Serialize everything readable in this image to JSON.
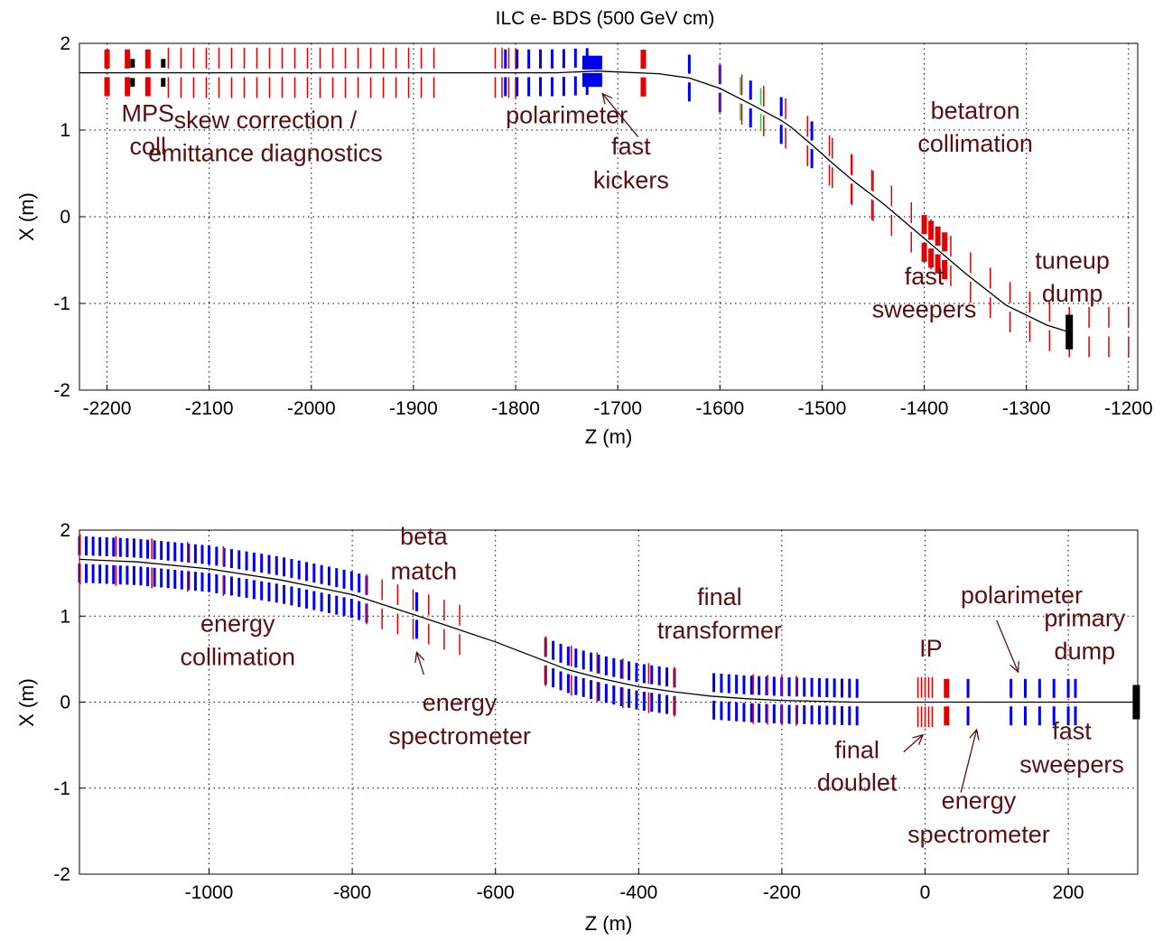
{
  "chart_data": [
    {
      "type": "line",
      "title": "ILC e- BDS (500 GeV cm)",
      "xlabel": "Z (m)",
      "ylabel": "X (m)",
      "xlim": [
        -2227,
        -1191
      ],
      "ylim": [
        -2,
        2
      ],
      "grid": true,
      "xticks": [
        -2200,
        -2100,
        -2000,
        -1900,
        -1800,
        -1700,
        -1600,
        -1500,
        -1400,
        -1300,
        -1200
      ],
      "yticks": [
        2,
        1,
        0,
        -1,
        -2
      ],
      "series": [
        {
          "style": "beamline-trajectory",
          "color": "#000000",
          "x": [
            -2227,
            -1760,
            -1720,
            -1700,
            -1660,
            -1630,
            -1600,
            -1570,
            -1540,
            -1530,
            -1510,
            -1490,
            -1470,
            -1440,
            -1400,
            -1360,
            -1320,
            -1280,
            -1258
          ],
          "y": [
            1.66,
            1.66,
            1.68,
            1.67,
            1.65,
            1.6,
            1.48,
            1.3,
            1.11,
            1.03,
            0.83,
            0.62,
            0.42,
            0.15,
            -0.25,
            -0.65,
            -1.02,
            -1.25,
            -1.33
          ]
        }
      ],
      "elements": [
        {
          "z": -2200,
          "type": "bend",
          "count": 1
        },
        {
          "z": -2180,
          "type": "bend",
          "count": 1
        },
        {
          "z": -2160,
          "type": "bend",
          "count": 1
        },
        {
          "z": -2175,
          "type": "collimator",
          "count": 1
        },
        {
          "z": -2145,
          "type": "collimator",
          "count": 1
        },
        {
          "range": [
            -2140,
            -1880
          ],
          "type": "thin-magnet",
          "count": 22
        },
        {
          "range": [
            -1820,
            -1800
          ],
          "type": "thin-magnet",
          "count": 4
        },
        {
          "range": [
            -1810,
            -1730
          ],
          "type": "quadrupole",
          "count": 8
        },
        {
          "z": -1725,
          "type": "kicker-block",
          "count": 1
        },
        {
          "z": -1675,
          "type": "bend",
          "count": 1
        },
        {
          "range": [
            -1630,
            -1510
          ],
          "type": "quadrupole",
          "count": 5
        },
        {
          "range": [
            -1600,
            -1560
          ],
          "type": "sextupole",
          "count": 3
        },
        {
          "range": [
            -1600,
            -1450
          ],
          "type": "thin-magnet",
          "count": 8
        },
        {
          "range": [
            -1400,
            -1380
          ],
          "type": "sweeper",
          "count": 4
        },
        {
          "range": [
            -1490,
            -1200
          ],
          "type": "thin-magnet",
          "count": 16
        },
        {
          "z": -1258,
          "type": "dump",
          "count": 1
        }
      ],
      "annotations": [
        {
          "text": "MPS",
          "x": -2160,
          "y": 1.1
        },
        {
          "text": "coll",
          "x": -2160,
          "y": 0.72
        },
        {
          "text": "skew correction /",
          "x": -2045,
          "y": 1.02
        },
        {
          "text": "emittance diagnostics",
          "x": -2045,
          "y": 0.64
        },
        {
          "text": "polarimeter",
          "x": -1750,
          "y": 1.08
        },
        {
          "text": "fast",
          "x": -1687,
          "y": 0.72
        },
        {
          "text": "kickers",
          "x": -1687,
          "y": 0.33
        },
        {
          "text": "betatron",
          "x": -1350,
          "y": 1.13
        },
        {
          "text": "collimation",
          "x": -1350,
          "y": 0.75
        },
        {
          "text": "fast",
          "x": -1400,
          "y": -0.78
        },
        {
          "text": "sweepers",
          "x": -1400,
          "y": -1.16
        },
        {
          "text": "tuneup",
          "x": -1255,
          "y": -0.6
        },
        {
          "text": "dump",
          "x": -1255,
          "y": -0.98
        }
      ]
    },
    {
      "type": "line",
      "title": "",
      "xlabel": "Z (m)",
      "ylabel": "X (m)",
      "xlim": [
        -1181,
        297
      ],
      "ylim": [
        -2,
        2
      ],
      "grid": true,
      "xticks": [
        -1000,
        -800,
        -600,
        -400,
        -200,
        0,
        200
      ],
      "yticks": [
        2,
        1,
        0,
        -1,
        -2
      ],
      "series": [
        {
          "style": "beamline-trajectory",
          "color": "#000000",
          "x": [
            -1181,
            -1100,
            -1000,
            -900,
            -800,
            -700,
            -600,
            -500,
            -450,
            -400,
            -350,
            -300,
            -250,
            -200,
            -150,
            -100,
            0,
            297
          ],
          "y": [
            1.66,
            1.63,
            1.55,
            1.42,
            1.25,
            0.98,
            0.7,
            0.38,
            0.27,
            0.18,
            0.12,
            0.07,
            0.04,
            0.02,
            0.01,
            0.0,
            0.0,
            0.0
          ]
        }
      ],
      "elements": [
        {
          "range": [
            -1181,
            -1000
          ],
          "type": "quadrupole",
          "count": 20
        },
        {
          "range": [
            -1000,
            -780
          ],
          "type": "quadrupole",
          "count": 22
        },
        {
          "range": [
            -1180,
            -980
          ],
          "type": "thin-magnet",
          "count": 5
        },
        {
          "range": [
            -780,
            -650
          ],
          "type": "thin-magnet",
          "count": 7
        },
        {
          "z": -710,
          "type": "quadrupole",
          "count": 1
        },
        {
          "range": [
            -530,
            -350
          ],
          "type": "quadrupole",
          "count": 18
        },
        {
          "range": [
            -530,
            -350
          ],
          "type": "thin-magnet",
          "count": 6
        },
        {
          "range": [
            -295,
            -95
          ],
          "type": "quadrupole",
          "count": 20
        },
        {
          "range": [
            -240,
            -180
          ],
          "type": "thin-magnet",
          "count": 4
        },
        {
          "range": [
            -10,
            10
          ],
          "type": "thin-magnet",
          "count": 5
        },
        {
          "z": 30,
          "type": "bend",
          "count": 1
        },
        {
          "z": 60,
          "type": "quadrupole",
          "count": 1
        },
        {
          "range": [
            120,
            180
          ],
          "type": "quadrupole",
          "count": 4
        },
        {
          "range": [
            200,
            210
          ],
          "type": "quadrupole",
          "count": 2
        },
        {
          "z": 295,
          "type": "dump",
          "count": 1
        }
      ],
      "annotations": [
        {
          "text": "beta",
          "x": -700,
          "y": 1.83
        },
        {
          "text": "match",
          "x": -700,
          "y": 1.43
        },
        {
          "text": "energy",
          "x": -960,
          "y": 0.82
        },
        {
          "text": "collimation",
          "x": -960,
          "y": 0.43
        },
        {
          "text": "energy",
          "x": -650,
          "y": -0.1
        },
        {
          "text": "spectrometer",
          "x": -650,
          "y": -0.49
        },
        {
          "text": "final",
          "x": -287,
          "y": 1.13
        },
        {
          "text": "transformer",
          "x": -287,
          "y": 0.74
        },
        {
          "text": "IP",
          "x": 8,
          "y": 0.53
        },
        {
          "text": "polarimeter",
          "x": 135,
          "y": 1.15
        },
        {
          "text": "primary",
          "x": 223,
          "y": 0.88
        },
        {
          "text": "dump",
          "x": 223,
          "y": 0.5
        },
        {
          "text": "final",
          "x": -95,
          "y": -0.65
        },
        {
          "text": "doublet",
          "x": -95,
          "y": -1.03
        },
        {
          "text": "fast",
          "x": 205,
          "y": -0.43
        },
        {
          "text": "sweepers",
          "x": 205,
          "y": -0.82
        },
        {
          "text": "energy",
          "x": 75,
          "y": -1.24
        },
        {
          "text": "spectrometer",
          "x": 75,
          "y": -1.63
        }
      ],
      "arrows": [
        {
          "from": [
            -700,
            0.32
          ],
          "to": [
            -710,
            0.58
          ]
        },
        {
          "from": [
            -1680,
            0.92
          ],
          "to": [
            -1715,
            1.42
          ],
          "panel": 0
        },
        {
          "from": [
            -30,
            -0.58
          ],
          "to": [
            -3,
            -0.38
          ]
        },
        {
          "from": [
            50,
            -1.05
          ],
          "to": [
            72,
            -0.32
          ]
        },
        {
          "from": [
            100,
            0.95
          ],
          "to": [
            130,
            0.35
          ]
        }
      ]
    }
  ],
  "colors": {
    "bend": "#e30000",
    "quadrupole": "#0000ee",
    "sextupole": "#33cc33",
    "collimator": "#000000",
    "dump": "#000000",
    "trajectory": "#000000",
    "annotation": "#5a0f0f"
  }
}
